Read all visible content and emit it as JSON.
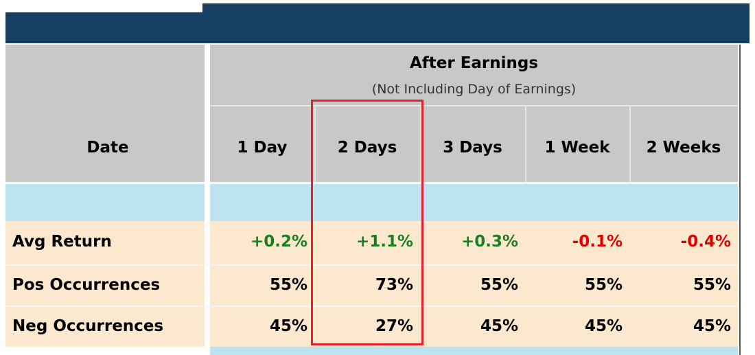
{
  "header": {
    "group_title": "After Earnings",
    "group_subtitle": "(Not Including Day of Earnings)"
  },
  "columns": [
    "Date",
    "1 Day",
    "2 Days",
    "3 Days",
    "1 Week",
    "2 Weeks"
  ],
  "rows": [
    {
      "label": "Avg Return",
      "values": [
        "+0.2%",
        "+1.1%",
        "+0.3%",
        "-0.1%",
        "-0.4%"
      ]
    },
    {
      "label": "Pos Occurrences",
      "values": [
        "55%",
        "73%",
        "55%",
        "55%",
        "55%"
      ]
    },
    {
      "label": "Neg Occurrences",
      "values": [
        "45%",
        "27%",
        "45%",
        "45%",
        "45%"
      ]
    }
  ],
  "highlight_column": 2,
  "colors": {
    "positive": "#1e7d1e",
    "negative": "#e00000",
    "neutral": "#000000"
  }
}
